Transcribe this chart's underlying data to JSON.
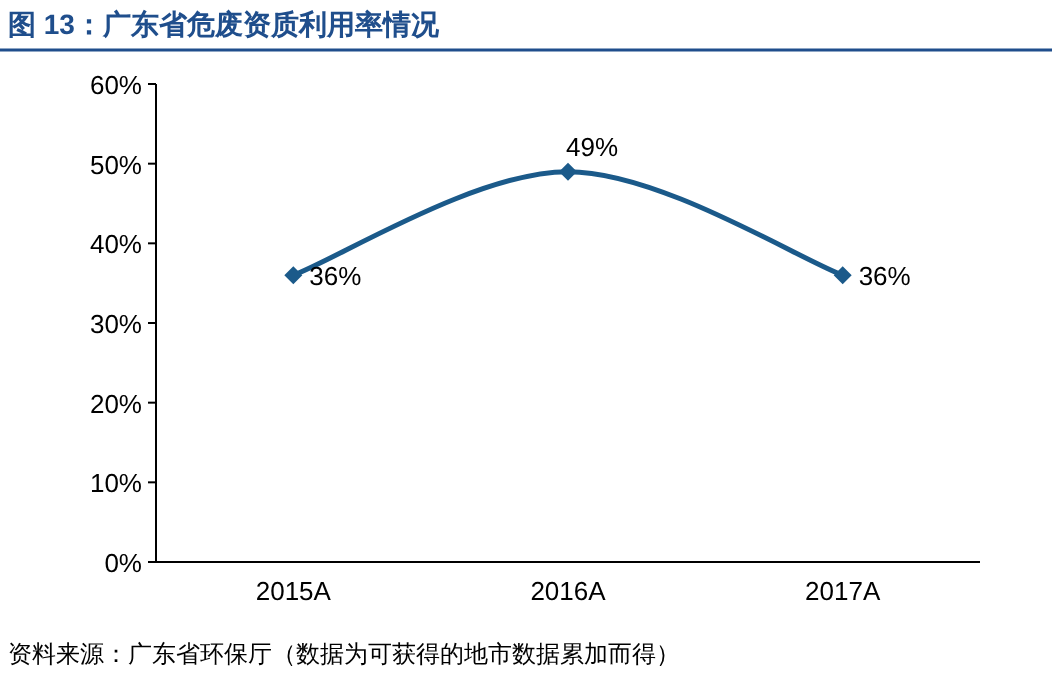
{
  "chart_data": {
    "type": "line",
    "title": "图 13：广东省危废资质利用率情况",
    "categories": [
      "2015A",
      "2016A",
      "2017A"
    ],
    "series": [
      {
        "color": "#1b5a8a",
        "values": [
          36,
          49,
          36
        ],
        "value_labels": [
          "36%",
          "49%",
          "36%"
        ]
      }
    ],
    "ylim": [
      0,
      60
    ],
    "yticks": [
      {
        "value": 0,
        "label": "0%"
      },
      {
        "value": 10,
        "label": "10%"
      },
      {
        "value": 20,
        "label": "20%"
      },
      {
        "value": 30,
        "label": "30%"
      },
      {
        "value": 40,
        "label": "40%"
      },
      {
        "value": 50,
        "label": "50%"
      },
      {
        "value": 60,
        "label": "60%"
      }
    ],
    "marker": "diamond",
    "line_style": "solid",
    "grid": false,
    "annotations": [
      "资料来源：广东省环保厅（数据为可获得的地市数据累加而得）"
    ]
  }
}
